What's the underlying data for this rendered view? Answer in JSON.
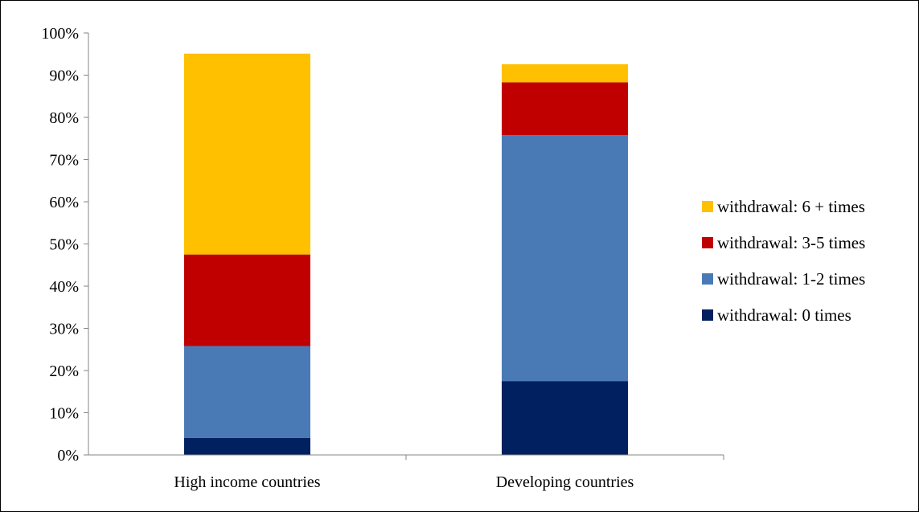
{
  "chart_data": {
    "type": "bar",
    "stacked": true,
    "title": "",
    "xlabel": "",
    "ylabel": "",
    "ylim": [
      0,
      100
    ],
    "yticks": [
      "0%",
      "10%",
      "20%",
      "30%",
      "40%",
      "50%",
      "60%",
      "70%",
      "80%",
      "90%",
      "100%"
    ],
    "categories": [
      "High income countries",
      "Developing countries"
    ],
    "series": [
      {
        "name": "withdrawal: 0 times",
        "color": "#002060",
        "values": [
          4.0,
          17.5
        ]
      },
      {
        "name": "withdrawal: 1-2 times",
        "color": "#4a7ab5",
        "values": [
          21.8,
          58.3
        ]
      },
      {
        "name": "withdrawal: 3-5 times",
        "color": "#c00000",
        "values": [
          21.7,
          12.5
        ]
      },
      {
        "name": "withdrawal: 6 + times",
        "color": "#ffc000",
        "values": [
          47.6,
          4.3
        ]
      }
    ],
    "grid": false,
    "legend_position": "right",
    "legend_order": "reverse"
  }
}
